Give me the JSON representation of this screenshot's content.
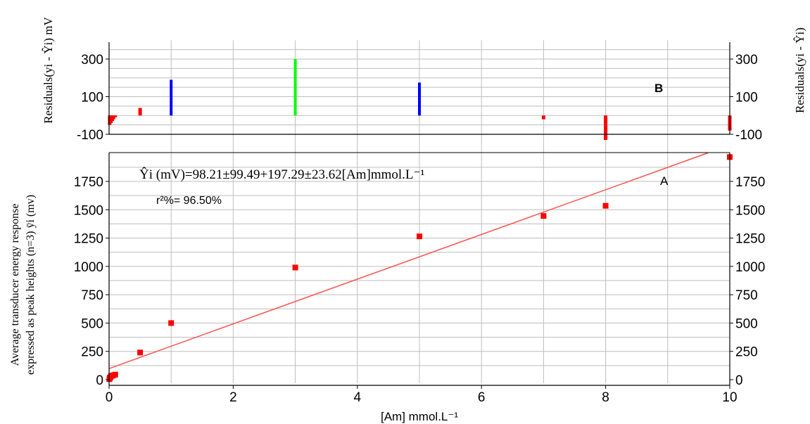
{
  "chart_data": [
    {
      "type": "bar",
      "panel_label": "B",
      "ylabel_left": "Residuals(yi - Ŷi) mV",
      "ylabel_right": "Residuals(yi - Ŷi)",
      "xlim": [
        0,
        10
      ],
      "ylim": [
        -150,
        400
      ],
      "yticks": [
        300,
        100,
        -100
      ],
      "ytick_labels": [
        "300",
        "100",
        "-100"
      ],
      "grid": true,
      "baseline": -100,
      "series": [
        {
          "x": [
            0.01,
            0.03,
            0.05,
            0.07,
            0.1,
            0.5,
            1,
            3,
            5,
            7,
            8,
            10
          ],
          "values": [
            -50,
            -40,
            -30,
            -20,
            -10,
            40,
            190,
            300,
            175,
            -20,
            -130,
            -80
          ],
          "colors": [
            "#ff0000",
            "#ff0000",
            "#ff0000",
            "#ff0000",
            "#ff0000",
            "#ff0000",
            "#0000ff",
            "#00ff00",
            "#0000ff",
            "#ff0000",
            "#ff0000",
            "#ff0000"
          ]
        }
      ]
    },
    {
      "type": "scatter",
      "panel_label": "A",
      "ylabel_left_line1": "Average transducer energy   response",
      "ylabel_left_line2": "expressed as peak heights (n=3) ӯi (mv)",
      "xlabel": "[Am] mmol.L⁻¹",
      "xlim": [
        0,
        10
      ],
      "ylim": [
        -30,
        1950
      ],
      "xticks": [
        0,
        2,
        4,
        6,
        8,
        10
      ],
      "xtick_labels": [
        "0",
        "2",
        "4",
        "6",
        "8",
        "10"
      ],
      "yticks": [
        0,
        250,
        500,
        750,
        1000,
        1250,
        1500,
        1750
      ],
      "ytick_labels": [
        "0",
        "250",
        "500",
        "750",
        "1000",
        "1250",
        "1500",
        "1750"
      ],
      "grid": true,
      "equation": "Ŷi (mV)=98.21±99.49+197.29±23.62[Am]mmol.L⁻¹",
      "r2": "r²%= 96.50%",
      "fit": {
        "intercept": 98.21,
        "slope": 197.29,
        "color": "#ff5050"
      },
      "series": [
        {
          "color": "#ff0000",
          "x": [
            0.005,
            0.01,
            0.02,
            0.03,
            0.05,
            0.07,
            0.1,
            0.5,
            1,
            3,
            5,
            7,
            8,
            10
          ],
          "y": [
            5,
            15,
            20,
            30,
            35,
            40,
            45,
            240,
            500,
            990,
            1265,
            1445,
            1535,
            1965
          ]
        }
      ]
    }
  ]
}
